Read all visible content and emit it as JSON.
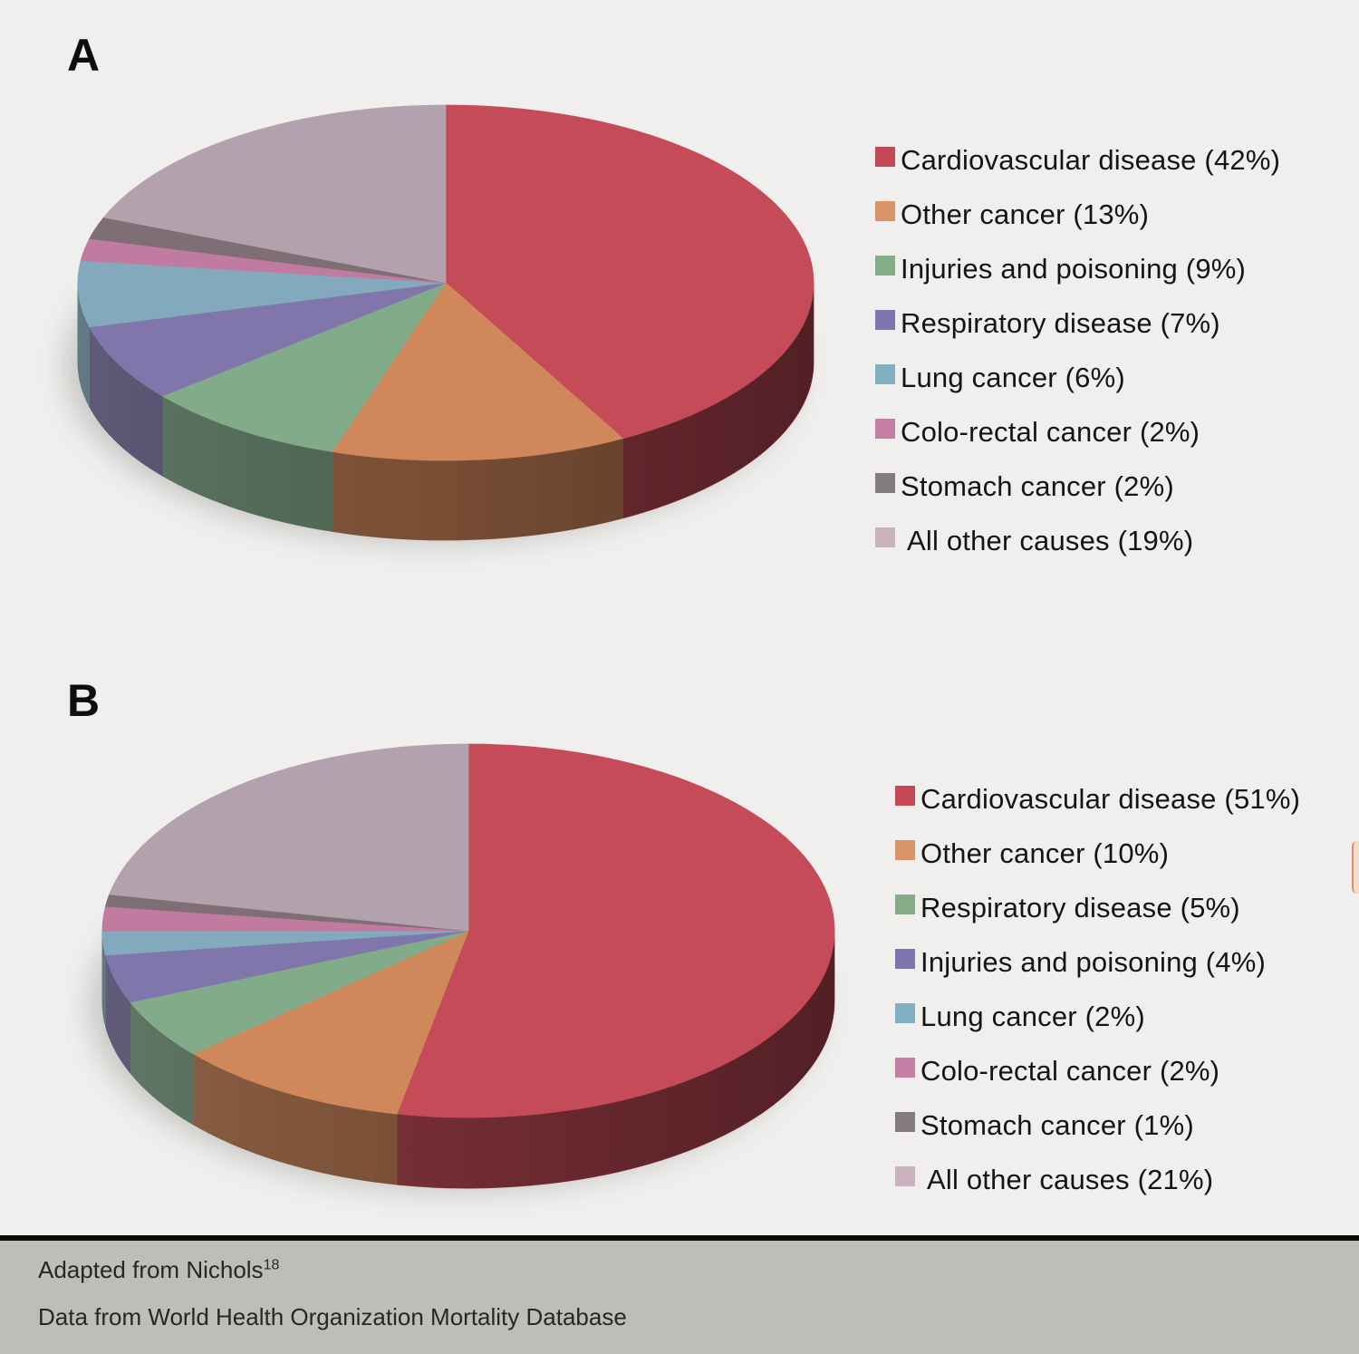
{
  "page": {
    "background": "#f0efed",
    "footer_background": "#bfbdb8"
  },
  "footer": {
    "line1": "Adapted from Nichols",
    "line1_sup": "18",
    "line2": "Data from World Health Organization Mortality Database"
  },
  "chart_data": [
    {
      "type": "pie",
      "style": "3d",
      "panel_label": "A",
      "legend_position": "right",
      "start_angle_deg": 0,
      "direction": "clockwise",
      "series": [
        {
          "label": "Cardiovascular disease",
          "value": 42,
          "legend_label": "Cardiovascular disease (42%)",
          "color": "#c54b58",
          "legend_color": "#c44954"
        },
        {
          "label": "Other cancer",
          "value": 13,
          "legend_label": "Other cancer (13%)",
          "color": "#d0885a",
          "legend_color": "#d89465"
        },
        {
          "label": "Injuries and poisoning",
          "value": 9,
          "legend_label": "Injuries and poisoning (9%)",
          "color": "#82ab8a",
          "legend_color": "#84ac86"
        },
        {
          "label": "Respiratory disease",
          "value": 7,
          "legend_label": "Respiratory disease (7%)",
          "color": "#8176ac",
          "legend_color": "#7e75ae"
        },
        {
          "label": "Lung cancer",
          "value": 6,
          "legend_label": "Lung cancer (6%)",
          "color": "#82aabc",
          "legend_color": "#80afc2"
        },
        {
          "label": "Colo-rectal cancer",
          "value": 2,
          "legend_label": "Colo-rectal cancer (2%)",
          "color": "#c27ba0",
          "legend_color": "#c480a4"
        },
        {
          "label": "Stomach cancer",
          "value": 2,
          "legend_label": "Stomach cancer (2%)",
          "color": "#7d6f73",
          "legend_color": "#847b7f"
        },
        {
          "label": "All other causes",
          "value": 19,
          "legend_label": "All other causes (19%)",
          "color": "#b4a1ae",
          "legend_color": "#cab2bf"
        }
      ]
    },
    {
      "type": "pie",
      "style": "3d",
      "panel_label": "B",
      "legend_position": "right",
      "start_angle_deg": 0,
      "direction": "clockwise",
      "series": [
        {
          "label": "Cardiovascular disease",
          "value": 51,
          "legend_label": "Cardiovascular disease (51%)",
          "color": "#c54b58",
          "legend_color": "#c44954"
        },
        {
          "label": "Other cancer",
          "value": 10,
          "legend_label": "Other cancer (10%)",
          "color": "#d0885a",
          "legend_color": "#d89465"
        },
        {
          "label": "Respiratory disease",
          "value": 5,
          "legend_label": "Respiratory disease (5%)",
          "color": "#82ab8a",
          "legend_color": "#84ac86"
        },
        {
          "label": "Injuries and poisoning",
          "value": 4,
          "legend_label": "Injuries and poisoning (4%)",
          "color": "#8176ac",
          "legend_color": "#7e75ae"
        },
        {
          "label": "Lung cancer",
          "value": 2,
          "legend_label": "Lung cancer (2%)",
          "color": "#82aabc",
          "legend_color": "#80afc2"
        },
        {
          "label": "Colo-rectal cancer",
          "value": 2,
          "legend_label": "Colo-rectal cancer (2%)",
          "color": "#c27ba0",
          "legend_color": "#c480a4"
        },
        {
          "label": "Stomach cancer",
          "value": 1,
          "legend_label": "Stomach cancer (1%)",
          "color": "#7d6f73",
          "legend_color": "#847b7f"
        },
        {
          "label": "All other causes",
          "value": 21,
          "legend_label": "All other causes (21%)",
          "color": "#b4a1ae",
          "legend_color": "#cab2bf"
        }
      ]
    }
  ]
}
